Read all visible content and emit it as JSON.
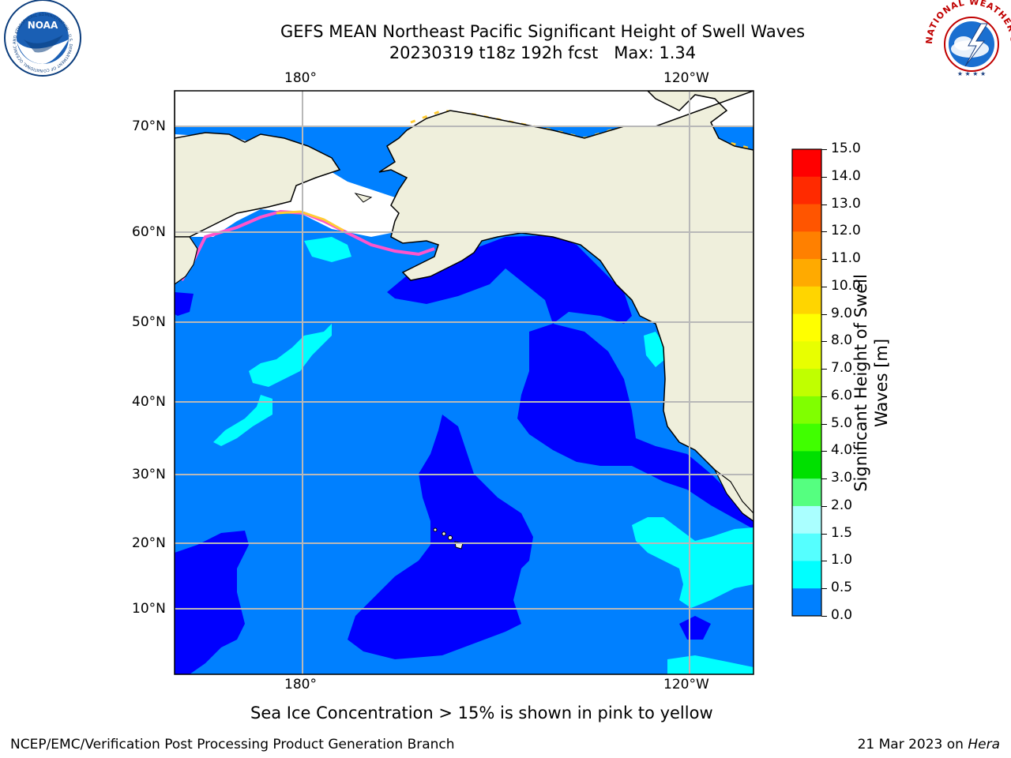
{
  "header": {
    "title_line1": "GEFS MEAN Northeast Pacific Significant Height of Swell Waves",
    "title_line2": "20230319 t18z 192h fcst   Max: 1.34"
  },
  "logos": {
    "left": "NOAA",
    "left_ring": "NATIONAL OCEANIC AND ATMOSPHERIC ADMINISTRATION · U.S. DEPARTMENT OF COMMERCE",
    "right_ring": "NATIONAL WEATHER SERVICE"
  },
  "map": {
    "top_lon_labels": [
      "180°",
      "120°W"
    ],
    "bottom_lon_labels": [
      "180°",
      "120°W"
    ],
    "lat_labels": [
      "70°N",
      "60°N",
      "50°N",
      "40°N",
      "30°N",
      "20°N",
      "10°N"
    ],
    "colors": {
      "land": "#efefdc",
      "swell_0_0_5": "#0000ff",
      "swell_0_5_1_0": "#0080ff",
      "swell_1_0_1_5": "#00ffff",
      "grid": "#b8b8b8",
      "ice": "#ff55cc"
    }
  },
  "colorbar": {
    "ticks": [
      "15.0",
      "14.0",
      "13.0",
      "12.0",
      "11.0",
      "10.0",
      "9.0",
      "8.0",
      "7.0",
      "6.0",
      "5.0",
      "4.0",
      "3.0",
      "2.0",
      "1.5",
      "1.0",
      "0.5",
      "0.0"
    ],
    "label_line1": "Significant Height of Swell",
    "label_line2": "Waves [m]",
    "colors": [
      "#ff0000",
      "#ff2a00",
      "#ff5500",
      "#ff8000",
      "#ffaa00",
      "#ffd500",
      "#ffff00",
      "#e8ff00",
      "#c0ff00",
      "#80ff00",
      "#40ff00",
      "#00e000",
      "#55ff80",
      "#aaffff",
      "#55ffff",
      "#00ffff",
      "#0080ff",
      "#0000ff"
    ]
  },
  "footer": {
    "ice_note": "Sea Ice Concentration > 15% is shown in pink to yellow",
    "branch": "NCEP/EMC/Verification Post Processing Product Generation Branch",
    "date": "21 Mar 2023 on ",
    "host": "Hera"
  }
}
